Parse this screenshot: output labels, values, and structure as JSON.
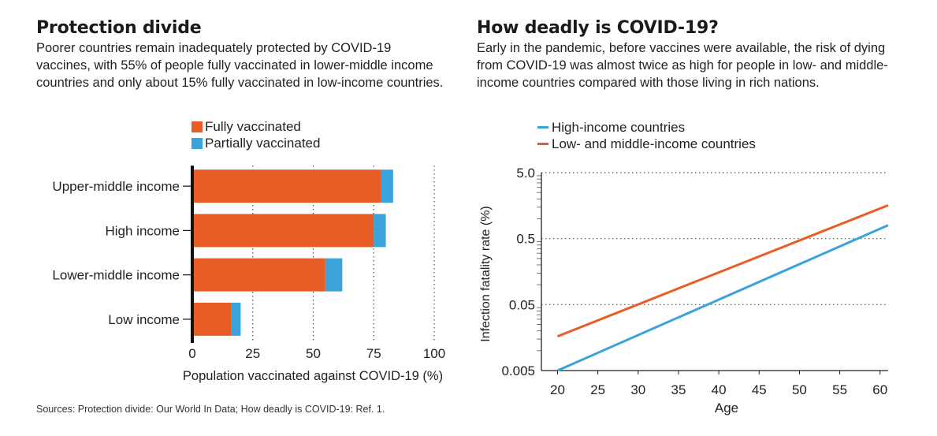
{
  "left": {
    "title": "Protection divide",
    "subtitle": "Poorer countries remain inadequately protected by COVID-19 vaccines, with 55% of people fully vaccinated in lower-middle income countries and only about 15% fully vaccinated in low-income countries.",
    "legend": [
      {
        "label": "Fully vaccinated",
        "color": "#e85d26"
      },
      {
        "label": "Partially vaccinated",
        "color": "#3aa3dc"
      }
    ]
  },
  "right": {
    "title": "How deadly is COVID-19?",
    "subtitle": "Early in the pandemic, before vaccines were available, the risk of dying from COVID-19 was almost twice as high for people in low- and middle-income countries compared with those living in rich nations.",
    "legend": [
      {
        "label": "High-income countries",
        "color": "#3aa3dc"
      },
      {
        "label": "Low- and middle-income countries",
        "color": "#e85d26"
      }
    ]
  },
  "sources": "Sources: Protection divide: Our World In Data; How deadly is COVID-19: Ref. 1.",
  "chart_data": [
    {
      "type": "bar",
      "orientation": "horizontal",
      "stacked": true,
      "categories": [
        "Upper-middle income",
        "High income",
        "Lower-middle income",
        "Low income"
      ],
      "series": [
        {
          "name": "Fully vaccinated",
          "values": [
            78,
            75,
            55,
            16
          ],
          "color": "#e85d26"
        },
        {
          "name": "Partially vaccinated",
          "values": [
            5,
            5,
            7,
            4
          ],
          "color": "#3aa3dc"
        }
      ],
      "xlabel": "Population vaccinated against COVID-19 (%)",
      "xlim": [
        0,
        100
      ],
      "xticks": [
        "0",
        "25",
        "50",
        "75",
        "100"
      ],
      "grid": "vertical dotted"
    },
    {
      "type": "line",
      "x": [
        20,
        61
      ],
      "series": [
        {
          "name": "High-income countries",
          "values": [
            0.005,
            0.8
          ],
          "color": "#3aa3dc"
        },
        {
          "name": "Low- and middle-income countries",
          "values": [
            0.0165,
            1.6
          ],
          "color": "#e85d26"
        }
      ],
      "xlabel": "Age",
      "ylabel": "Infection fatality rate (%)",
      "xlim": [
        18,
        61
      ],
      "yscale": "log",
      "ylim": [
        0.005,
        5.0
      ],
      "xticks": [
        "20",
        "25",
        "30",
        "35",
        "40",
        "45",
        "50",
        "55",
        "60"
      ],
      "yticks": [
        "0.005",
        "0.05",
        "0.5",
        "5.0"
      ],
      "grid": "horizontal dotted"
    }
  ]
}
